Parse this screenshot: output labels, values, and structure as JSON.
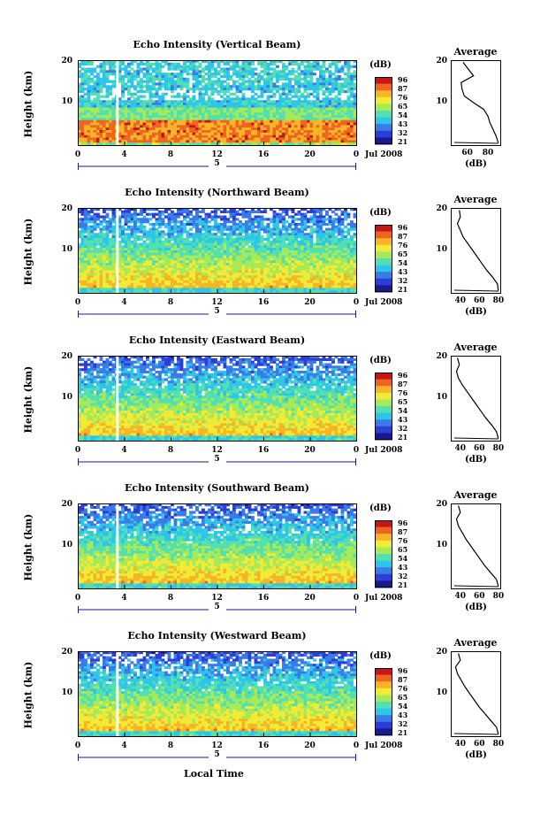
{
  "colorscale": {
    "colors": [
      "#1a1a8c",
      "#2b3fd6",
      "#3b7be8",
      "#2ec6e8",
      "#53e0b0",
      "#a6ea5a",
      "#f2ea35",
      "#f5b526",
      "#ee6420",
      "#c41818"
    ],
    "ticks": [
      "96",
      "87",
      "76",
      "65",
      "54",
      "43",
      "32",
      "21"
    ],
    "unit": "(dB)"
  },
  "x_axis": {
    "ticks": [
      "0",
      "4",
      "8",
      "12",
      "16",
      "20",
      "0"
    ],
    "date_label": "Jul 2008",
    "day_marker": "5",
    "label": "Local Time"
  },
  "y_axis": {
    "label": "Height (km)",
    "ticks": [
      "20",
      "10"
    ]
  },
  "profile_axis": {
    "title": "Average",
    "xlabel": "(dB)"
  },
  "chart_data": [
    {
      "type": "heatmap",
      "title": "Echo Intensity (Vertical Beam)",
      "xlabel": "",
      "ylabel": "Height (km)",
      "xlim": [
        0,
        24
      ],
      "ylim": [
        1,
        20
      ],
      "zlim": [
        21,
        96
      ],
      "z_unit": "dB",
      "profile": {
        "title": "Average",
        "xlabel": "(dB)",
        "xticks": [
          "60",
          "80"
        ],
        "xlim": [
          44,
          92
        ],
        "heights": [
          1.5,
          3,
          4.5,
          6,
          7.5,
          9,
          10.5,
          12,
          13.5,
          15,
          16.5,
          18,
          19.5
        ],
        "values": [
          90,
          88,
          85,
          82,
          80,
          76,
          66,
          57,
          55,
          54,
          66,
          61,
          56
        ]
      }
    },
    {
      "type": "heatmap",
      "title": "Echo Intensity (Northward Beam)",
      "xlabel": "",
      "ylabel": "Height (km)",
      "xlim": [
        0,
        24
      ],
      "ylim": [
        1,
        20
      ],
      "zlim": [
        21,
        96
      ],
      "z_unit": "dB",
      "profile": {
        "title": "Average",
        "xlabel": "(dB)",
        "xticks": [
          "40",
          "60",
          "80"
        ],
        "xlim": [
          30,
          82
        ],
        "heights": [
          1.5,
          3,
          4.5,
          6,
          7.5,
          9,
          10.5,
          12,
          13.5,
          15,
          16.5,
          18,
          19.5
        ],
        "values": [
          80,
          79,
          74,
          68,
          63,
          58,
          53,
          48,
          43,
          40,
          37,
          40,
          39
        ]
      }
    },
    {
      "type": "heatmap",
      "title": "Echo Intensity (Eastward Beam)",
      "xlabel": "",
      "ylabel": "Height (km)",
      "xlim": [
        0,
        24
      ],
      "ylim": [
        1,
        20
      ],
      "zlim": [
        21,
        96
      ],
      "z_unit": "dB",
      "profile": {
        "title": "Average",
        "xlabel": "(dB)",
        "xticks": [
          "40",
          "60",
          "80"
        ],
        "xlim": [
          30,
          82
        ],
        "heights": [
          1.5,
          3,
          4.5,
          6,
          7.5,
          9,
          10.5,
          12,
          13.5,
          15,
          16.5,
          18,
          19.5
        ],
        "values": [
          80,
          78,
          73,
          67,
          62,
          57,
          52,
          47,
          42,
          38,
          36,
          39,
          37
        ]
      }
    },
    {
      "type": "heatmap",
      "title": "Echo Intensity (Southward Beam)",
      "xlabel": "",
      "ylabel": "Height (km)",
      "xlim": [
        0,
        24
      ],
      "ylim": [
        1,
        20
      ],
      "zlim": [
        21,
        96
      ],
      "z_unit": "dB",
      "profile": {
        "title": "Average",
        "xlabel": "(dB)",
        "xticks": [
          "40",
          "60",
          "80"
        ],
        "xlim": [
          30,
          82
        ],
        "heights": [
          1.5,
          3,
          4.5,
          6,
          7.5,
          9,
          10.5,
          12,
          13.5,
          15,
          16.5,
          18,
          19.5
        ],
        "values": [
          80,
          78,
          72,
          66,
          61,
          56,
          51,
          46,
          42,
          38,
          36,
          40,
          38
        ]
      }
    },
    {
      "type": "heatmap",
      "title": "Echo Intensity (Westward Beam)",
      "xlabel": "Local Time",
      "ylabel": "Height (km)",
      "xlim": [
        0,
        24
      ],
      "ylim": [
        1,
        20
      ],
      "zlim": [
        21,
        96
      ],
      "z_unit": "dB",
      "profile": {
        "title": "Average",
        "xlabel": "(dB)",
        "xticks": [
          "40",
          "60",
          "80"
        ],
        "xlim": [
          30,
          82
        ],
        "heights": [
          1.5,
          3,
          4.5,
          6,
          7.5,
          9,
          10.5,
          12,
          13.5,
          15,
          16.5,
          18,
          19.5
        ],
        "values": [
          80,
          78,
          72,
          66,
          60,
          55,
          50,
          45,
          41,
          37,
          35,
          40,
          38
        ]
      }
    }
  ]
}
